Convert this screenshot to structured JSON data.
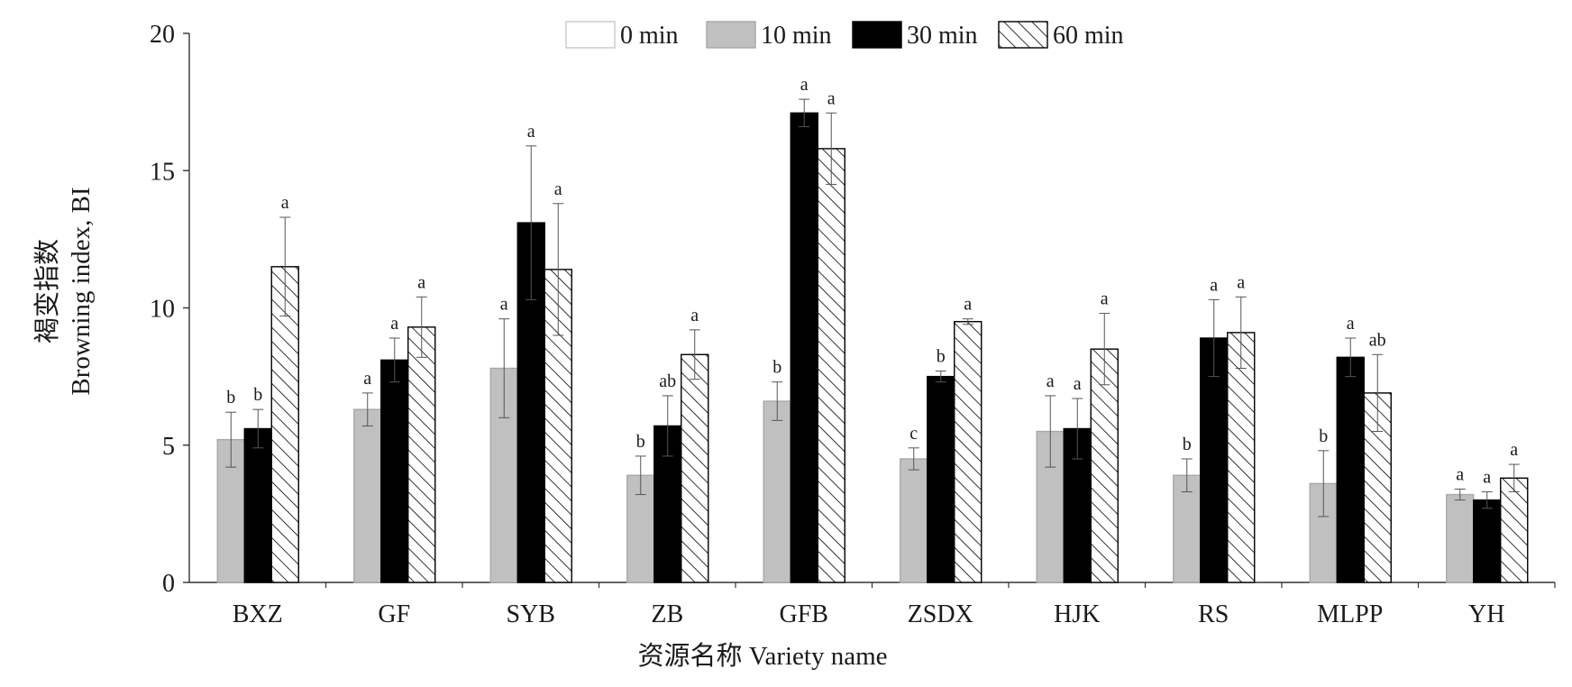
{
  "chart_data": {
    "type": "bar",
    "title": "",
    "ylabel_cn": "褐变指数",
    "ylabel": "Browning index, BI",
    "xlabel": "资源名称 Variety name",
    "ylim": [
      0,
      20
    ],
    "yticks": [
      "0",
      "5",
      "10",
      "15",
      "20"
    ],
    "legend_position": "top",
    "categories": [
      "BXZ",
      "GF",
      "SYB",
      "ZB",
      "GFB",
      "ZSDX",
      "HJK",
      "RS",
      "MLPP",
      "YH"
    ],
    "series": [
      {
        "name": "0 min",
        "pattern": "solid",
        "color": "#ffffff",
        "values": [
          0,
          0,
          0,
          0,
          0,
          0,
          0,
          0,
          0,
          0
        ]
      },
      {
        "name": "10 min",
        "pattern": "solid",
        "color": "#c0c0c0",
        "values": [
          5.2,
          6.3,
          7.8,
          3.9,
          6.6,
          4.5,
          5.5,
          3.9,
          3.6,
          3.2
        ],
        "errors": [
          1.0,
          0.6,
          1.8,
          0.7,
          0.7,
          0.4,
          1.3,
          0.6,
          1.2,
          0.2
        ],
        "labels": [
          "b",
          "a",
          "a",
          "b",
          "b",
          "c",
          "a",
          "b",
          "b",
          "a"
        ]
      },
      {
        "name": "30 min",
        "pattern": "solid",
        "color": "#000000",
        "values": [
          5.6,
          8.1,
          13.1,
          5.7,
          17.1,
          7.5,
          5.6,
          8.9,
          8.2,
          3.0
        ],
        "errors": [
          0.7,
          0.8,
          2.8,
          1.1,
          0.5,
          0.2,
          1.1,
          1.4,
          0.7,
          0.3
        ],
        "labels": [
          "b",
          "a",
          "a",
          "ab",
          "a",
          "b",
          "a",
          "a",
          "a",
          "a"
        ]
      },
      {
        "name": "60 min",
        "pattern": "hatch",
        "color": "#ffffff",
        "values": [
          11.5,
          9.3,
          11.4,
          8.3,
          15.8,
          9.5,
          8.5,
          9.1,
          6.9,
          3.8
        ],
        "errors": [
          1.8,
          1.1,
          2.4,
          0.9,
          1.3,
          0.1,
          1.3,
          1.3,
          1.4,
          0.5
        ],
        "labels": [
          "a",
          "a",
          "a",
          "a",
          "a",
          "a",
          "a",
          "a",
          "ab",
          "a"
        ]
      }
    ]
  }
}
